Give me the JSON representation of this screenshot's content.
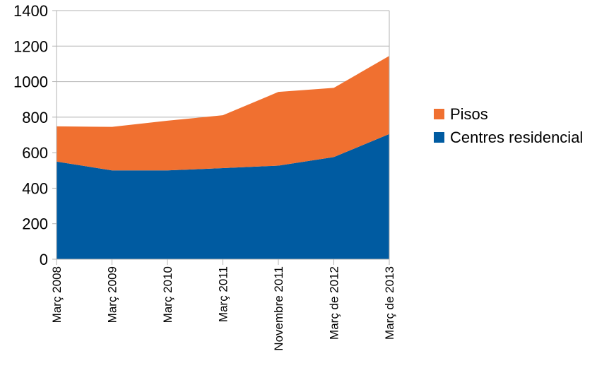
{
  "chart_data": {
    "type": "area",
    "stacked": true,
    "categories": [
      "Març 2008",
      "Març 2009",
      "Març 2010",
      "Març 2011",
      "Novembre 2011",
      "Març de 2012",
      "Març de 2013"
    ],
    "series": [
      {
        "name": "Centres residencial",
        "color": "#005ba1",
        "values": [
          550,
          500,
          500,
          513,
          527,
          575,
          705
        ]
      },
      {
        "name": "Pisos",
        "color": "#f07030",
        "values": [
          198,
          245,
          280,
          298,
          415,
          390,
          440
        ]
      }
    ],
    "ylim": [
      0,
      1400
    ],
    "yticks": [
      0,
      200,
      400,
      600,
      800,
      1000,
      1200,
      1400
    ],
    "grid": true,
    "legend_position": "right",
    "title": "",
    "xlabel": "",
    "ylabel": ""
  }
}
